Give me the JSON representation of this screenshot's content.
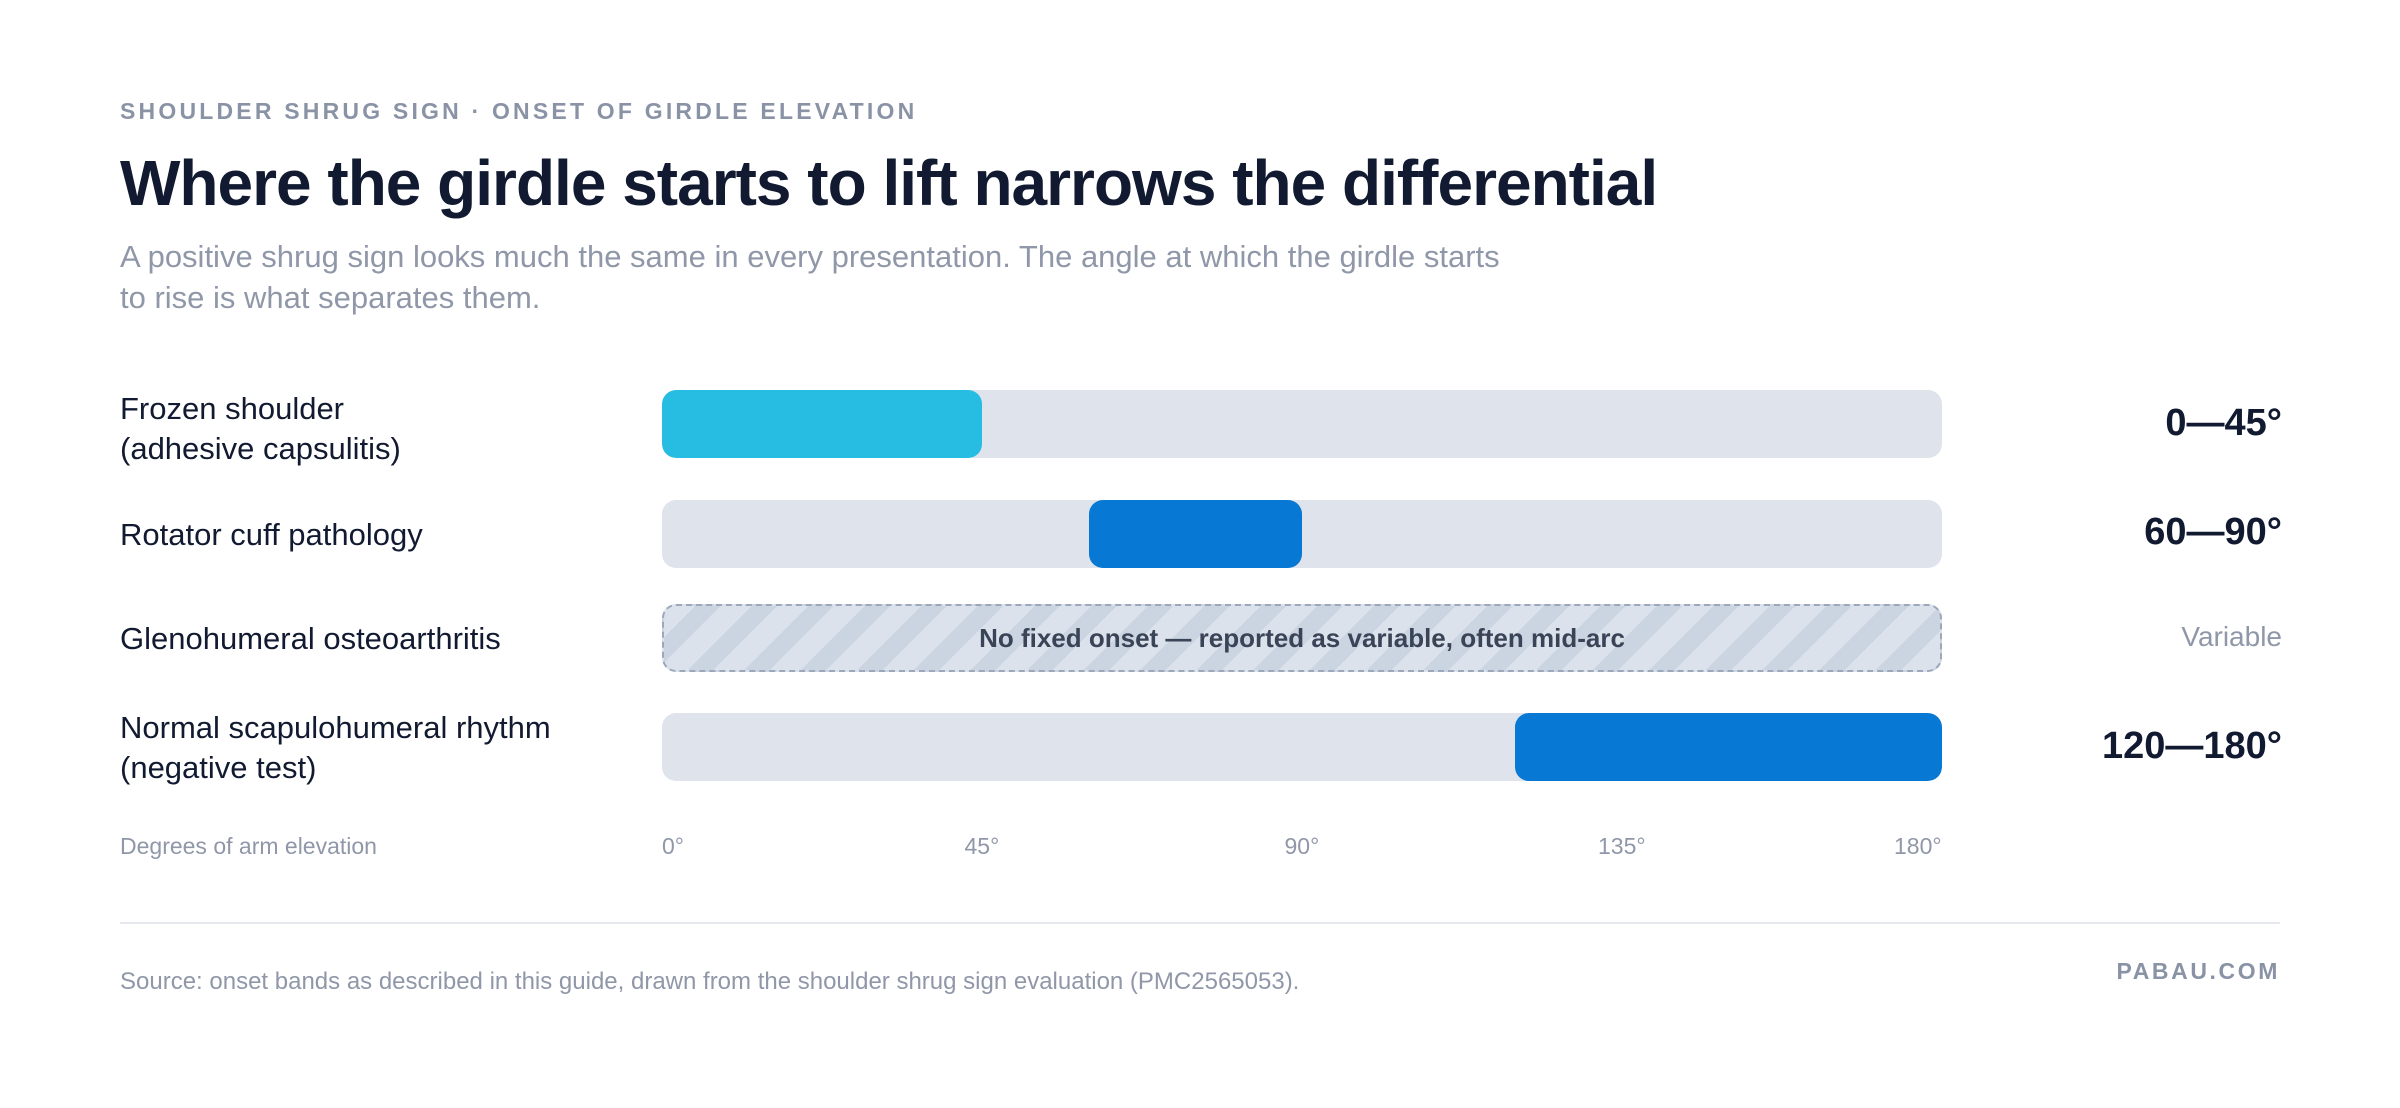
{
  "header": {
    "eyebrow": "SHOULDER SHRUG SIGN · ONSET OF GIRDLE ELEVATION",
    "title": "Where the girdle starts to lift narrows the differential",
    "subtitle": "A positive shrug sign looks much the same in every presentation. The angle at which the girdle starts to rise is what separates them."
  },
  "colors": {
    "track": "#dfe3ec",
    "frozen_shoulder": "#27bde2",
    "primary_band": "#0779d4",
    "title_text": "#111a30",
    "muted_text": "#8f97a8"
  },
  "chart_data": {
    "type": "bar",
    "subtype": "range",
    "xlabel": "Degrees of arm elevation",
    "xlim": [
      0,
      180
    ],
    "ticks": [
      "0°",
      "45°",
      "90°",
      "135°",
      "180°"
    ],
    "tick_values": [
      0,
      45,
      90,
      135,
      180
    ],
    "rows": [
      {
        "label_line1": "Frozen shoulder",
        "label_line2": "(adhesive capsulitis)",
        "start": 0,
        "end": 45,
        "range_label": "0—45°",
        "color": "#27bde2",
        "variable": false
      },
      {
        "label_line1": "Rotator cuff pathology",
        "label_line2": "",
        "start": 60,
        "end": 90,
        "range_label": "60—90°",
        "color": "#0779d4",
        "variable": false
      },
      {
        "label_line1": "Glenohumeral osteoarthritis",
        "label_line2": "",
        "start": null,
        "end": null,
        "range_label": "Variable",
        "color": "#cbd5e2",
        "variable": true,
        "note": "No fixed onset — reported as variable, often mid-arc"
      },
      {
        "label_line1": "Normal scapulohumeral rhythm",
        "label_line2": "(negative test)",
        "start": 120,
        "end": 180,
        "range_label": "120—180°",
        "color": "#0779d4",
        "variable": false
      }
    ]
  },
  "footer": {
    "source": "Source: onset bands as described in this guide, drawn from the shoulder shrug sign evaluation (PMC2565053).",
    "brand": "PABAU.COM"
  }
}
